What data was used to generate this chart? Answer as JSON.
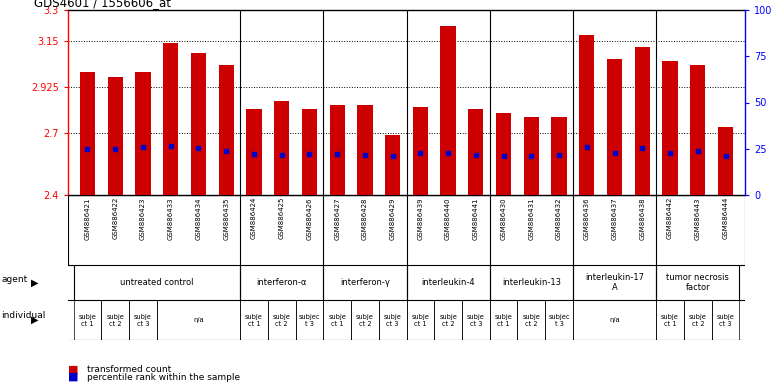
{
  "title": "GDS4601 / 1556606_at",
  "samples": [
    "GSM886421",
    "GSM886422",
    "GSM886423",
    "GSM886433",
    "GSM886434",
    "GSM886435",
    "GSM886424",
    "GSM886425",
    "GSM886426",
    "GSM886427",
    "GSM886428",
    "GSM886429",
    "GSM886439",
    "GSM886440",
    "GSM886441",
    "GSM886430",
    "GSM886431",
    "GSM886432",
    "GSM886436",
    "GSM886437",
    "GSM886438",
    "GSM886442",
    "GSM886443",
    "GSM886444"
  ],
  "bar_values": [
    3.0,
    2.975,
    3.0,
    3.14,
    3.09,
    3.03,
    2.82,
    2.855,
    2.82,
    2.84,
    2.84,
    2.69,
    2.83,
    3.22,
    2.82,
    2.8,
    2.78,
    2.78,
    3.18,
    3.06,
    3.12,
    3.05,
    3.03,
    2.73
  ],
  "percentile_values": [
    2.625,
    2.625,
    2.635,
    2.64,
    2.63,
    2.615,
    2.6,
    2.595,
    2.598,
    2.598,
    2.597,
    2.59,
    2.603,
    2.605,
    2.596,
    2.592,
    2.59,
    2.597,
    2.635,
    2.603,
    2.628,
    2.605,
    2.614,
    2.59
  ],
  "ymin": 2.4,
  "ymax": 3.3,
  "yticks": [
    2.4,
    2.7,
    2.925,
    3.15,
    3.3
  ],
  "ytick_labels": [
    "2.4",
    "2.7",
    "2.925",
    "3.15",
    "3.3"
  ],
  "right_yticks": [
    0.0,
    0.25,
    0.5,
    0.75,
    1.0
  ],
  "right_ytick_labels": [
    "0",
    "25",
    "50",
    "75",
    "100%"
  ],
  "bar_color": "#cc0000",
  "percentile_color": "#0000cc",
  "agent_groups": [
    {
      "label": "untreated control",
      "start": 0,
      "end": 5
    },
    {
      "label": "interferon-α",
      "start": 6,
      "end": 8
    },
    {
      "label": "interferon-γ",
      "start": 9,
      "end": 11
    },
    {
      "label": "interleukin-4",
      "start": 12,
      "end": 14
    },
    {
      "label": "interleukin-13",
      "start": 15,
      "end": 17
    },
    {
      "label": "interleukin-17\nA",
      "start": 18,
      "end": 20
    },
    {
      "label": "tumor necrosis\nfactor",
      "start": 21,
      "end": 23
    }
  ],
  "individual_cells": [
    {
      "label": "subje\nct 1",
      "start": 0,
      "end": 0
    },
    {
      "label": "subje\nct 2",
      "start": 1,
      "end": 1
    },
    {
      "label": "subje\nct 3",
      "start": 2,
      "end": 2
    },
    {
      "label": "n/a",
      "start": 3,
      "end": 5
    },
    {
      "label": "subje\nct 1",
      "start": 6,
      "end": 6
    },
    {
      "label": "subje\nct 2",
      "start": 7,
      "end": 7
    },
    {
      "label": "subjec\nt 3",
      "start": 8,
      "end": 8
    },
    {
      "label": "subje\nct 1",
      "start": 9,
      "end": 9
    },
    {
      "label": "subje\nct 2",
      "start": 10,
      "end": 10
    },
    {
      "label": "subje\nct 3",
      "start": 11,
      "end": 11
    },
    {
      "label": "subje\nct 1",
      "start": 12,
      "end": 12
    },
    {
      "label": "subje\nct 2",
      "start": 13,
      "end": 13
    },
    {
      "label": "subje\nct 3",
      "start": 14,
      "end": 14
    },
    {
      "label": "subje\nct 1",
      "start": 15,
      "end": 15
    },
    {
      "label": "subje\nct 2",
      "start": 16,
      "end": 16
    },
    {
      "label": "subjec\nt 3",
      "start": 17,
      "end": 17
    },
    {
      "label": "n/a",
      "start": 18,
      "end": 20
    },
    {
      "label": "subje\nct 1",
      "start": 21,
      "end": 21
    },
    {
      "label": "subje\nct 2",
      "start": 22,
      "end": 22
    },
    {
      "label": "subje\nct 3",
      "start": 23,
      "end": 23
    }
  ],
  "group_boundaries": [
    5.5,
    8.5,
    11.5,
    14.5,
    17.5,
    20.5
  ],
  "agent_color": "#ccffcc",
  "indiv_color": "#dd88dd",
  "sample_bg": "#cccccc",
  "background_color": "#ffffff"
}
